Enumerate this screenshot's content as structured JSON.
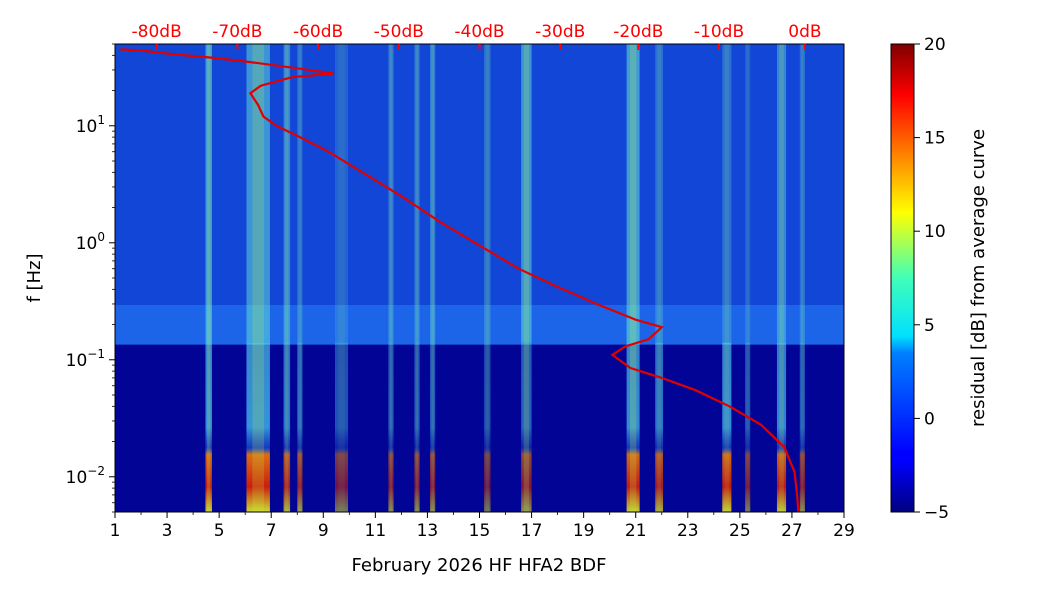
{
  "chart_data": {
    "type": "heatmap",
    "title": "",
    "xlabel": "February 2026 HF HFA2  BDF",
    "ylabel": "f [Hz]",
    "x_ticks": [
      1,
      3,
      5,
      7,
      9,
      11,
      13,
      15,
      17,
      19,
      21,
      23,
      25,
      27,
      29
    ],
    "xlim": [
      1,
      29
    ],
    "ylim": [
      0.005,
      50
    ],
    "y_scale": "log",
    "y_ticks": [
      {
        "value": 0.01,
        "base": "10",
        "exp": "−2"
      },
      {
        "value": 0.1,
        "base": "10",
        "exp": "−1"
      },
      {
        "value": 1,
        "base": "10",
        "exp": "0"
      },
      {
        "value": 10,
        "base": "10",
        "exp": "1"
      }
    ],
    "top_axis": {
      "color": "#ff0000",
      "labels": [
        "-80dB",
        "-70dB",
        "-60dB",
        "-50dB",
        "-40dB",
        "-30dB",
        "-20dB",
        "-10dB",
        "0dB"
      ],
      "positions_day": [
        2.6,
        5.7,
        8.8,
        11.9,
        15.0,
        18.1,
        21.1,
        24.2,
        27.5
      ]
    },
    "colorbar": {
      "label": "residual [dB] from average curve",
      "range": [
        -5,
        20
      ],
      "ticks": [
        -5,
        0,
        5,
        10,
        15,
        20
      ],
      "tick_labels": [
        "−5",
        "0",
        "5",
        "10",
        "15",
        "20"
      ],
      "colormap": "jet"
    },
    "noise_bands": [
      {
        "day": 4.6,
        "width": 0.25,
        "hf": 0.6,
        "lf": 0.95
      },
      {
        "day": 6.5,
        "width": 0.9,
        "hf": 0.55,
        "lf": 1.0
      },
      {
        "day": 7.6,
        "width": 0.25,
        "hf": 0.45,
        "lf": 0.8
      },
      {
        "day": 8.1,
        "width": 0.2,
        "hf": 0.3,
        "lf": 0.7
      },
      {
        "day": 9.7,
        "width": 0.5,
        "hf": 0.2,
        "lf": 0.55
      },
      {
        "day": 11.6,
        "width": 0.2,
        "hf": 0.35,
        "lf": 0.6
      },
      {
        "day": 12.6,
        "width": 0.2,
        "hf": 0.35,
        "lf": 0.6
      },
      {
        "day": 13.2,
        "width": 0.2,
        "hf": 0.4,
        "lf": 0.6
      },
      {
        "day": 15.3,
        "width": 0.25,
        "hf": 0.3,
        "lf": 0.5
      },
      {
        "day": 16.8,
        "width": 0.4,
        "hf": 0.55,
        "lf": 0.65
      },
      {
        "day": 20.9,
        "width": 0.5,
        "hf": 0.6,
        "lf": 0.95
      },
      {
        "day": 21.9,
        "width": 0.3,
        "hf": 0.3,
        "lf": 0.8
      },
      {
        "day": 24.5,
        "width": 0.35,
        "hf": 0.3,
        "lf": 0.95
      },
      {
        "day": 25.3,
        "width": 0.2,
        "hf": 0.2,
        "lf": 0.55
      },
      {
        "day": 26.6,
        "width": 0.35,
        "hf": 0.45,
        "lf": 0.9
      },
      {
        "day": 27.4,
        "width": 0.2,
        "hf": 0.3,
        "lf": 0.6
      }
    ],
    "reference_curve": {
      "color": "#e00000",
      "points": [
        {
          "day": 1.2,
          "f": 45
        },
        {
          "day": 2.0,
          "f": 44
        },
        {
          "day": 3.2,
          "f": 41
        },
        {
          "day": 4.8,
          "f": 38
        },
        {
          "day": 6.2,
          "f": 35
        },
        {
          "day": 8.0,
          "f": 31
        },
        {
          "day": 9.4,
          "f": 28
        },
        {
          "day": 7.8,
          "f": 26
        },
        {
          "day": 6.6,
          "f": 22
        },
        {
          "day": 6.2,
          "f": 19
        },
        {
          "day": 6.5,
          "f": 15
        },
        {
          "day": 6.7,
          "f": 12
        },
        {
          "day": 7.2,
          "f": 10
        },
        {
          "day": 8.1,
          "f": 8
        },
        {
          "day": 9.2,
          "f": 6
        },
        {
          "day": 10.5,
          "f": 4
        },
        {
          "day": 12.0,
          "f": 2.5
        },
        {
          "day": 13.5,
          "f": 1.5
        },
        {
          "day": 15.0,
          "f": 0.95
        },
        {
          "day": 16.5,
          "f": 0.6
        },
        {
          "day": 18.0,
          "f": 0.42
        },
        {
          "day": 19.5,
          "f": 0.3
        },
        {
          "day": 21.0,
          "f": 0.22
        },
        {
          "day": 22.0,
          "f": 0.19
        },
        {
          "day": 21.5,
          "f": 0.15
        },
        {
          "day": 20.6,
          "f": 0.13
        },
        {
          "day": 20.1,
          "f": 0.11
        },
        {
          "day": 20.8,
          "f": 0.085
        },
        {
          "day": 22.0,
          "f": 0.07
        },
        {
          "day": 23.3,
          "f": 0.055
        },
        {
          "day": 24.6,
          "f": 0.04
        },
        {
          "day": 25.8,
          "f": 0.028
        },
        {
          "day": 26.7,
          "f": 0.018
        },
        {
          "day": 27.1,
          "f": 0.011
        },
        {
          "day": 27.2,
          "f": 0.007
        },
        {
          "day": 27.25,
          "f": 0.005
        }
      ]
    }
  }
}
